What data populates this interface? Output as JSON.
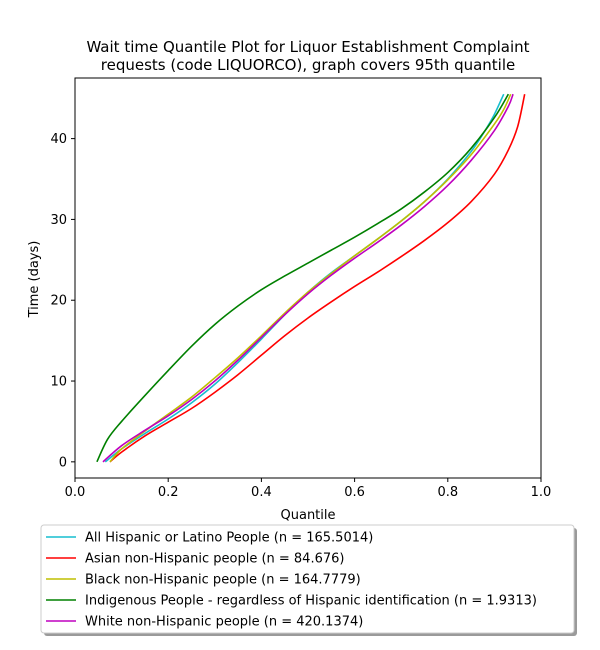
{
  "chart_data": {
    "type": "line",
    "title": [
      "Wait time Quantile Plot for Liquor Establishment Complaint",
      "requests (code LIQUORCO), graph covers 95th quantile"
    ],
    "xlabel": "Quantile",
    "ylabel": "Time (days)",
    "xlim": [
      0.0,
      1.0
    ],
    "ylim": [
      -2,
      47.5
    ],
    "xticks": [
      "0.0",
      "0.2",
      "0.4",
      "0.6",
      "0.8",
      "1.0"
    ],
    "yticks": [
      "0",
      "10",
      "20",
      "30",
      "40"
    ],
    "grid": false,
    "legend_position": "below plot",
    "series": [
      {
        "name": "All Hispanic or Latino People (n = 165.5014)",
        "color": "#17becf",
        "x": [
          0.065,
          0.1,
          0.15,
          0.2,
          0.25,
          0.3,
          0.35,
          0.4,
          0.45,
          0.5,
          0.55,
          0.6,
          0.65,
          0.7,
          0.75,
          0.8,
          0.85,
          0.88,
          0.9,
          0.92
        ],
        "y": [
          0,
          1.6,
          3.5,
          5.3,
          7.3,
          9.6,
          12.3,
          15.2,
          18.2,
          21.0,
          23.4,
          25.5,
          27.6,
          29.8,
          32.2,
          35.0,
          38.4,
          41.0,
          43.0,
          45.5
        ]
      },
      {
        "name": "Asian non-Hispanic people (n = 84.676)",
        "color": "#ff0000",
        "x": [
          0.075,
          0.1,
          0.15,
          0.2,
          0.25,
          0.3,
          0.35,
          0.4,
          0.45,
          0.5,
          0.55,
          0.6,
          0.65,
          0.7,
          0.75,
          0.8,
          0.85,
          0.9,
          0.93,
          0.95,
          0.965
        ],
        "y": [
          0,
          1.2,
          3.2,
          4.9,
          6.6,
          8.6,
          10.8,
          13.2,
          15.6,
          17.8,
          19.8,
          21.7,
          23.5,
          25.4,
          27.4,
          29.6,
          32.2,
          35.6,
          38.6,
          41.5,
          45.5
        ]
      },
      {
        "name": "Black non-Hispanic people (n = 164.7779)",
        "color": "#bfbf00",
        "x": [
          0.075,
          0.1,
          0.15,
          0.2,
          0.25,
          0.3,
          0.35,
          0.4,
          0.45,
          0.5,
          0.55,
          0.6,
          0.65,
          0.7,
          0.75,
          0.8,
          0.85,
          0.9,
          0.92,
          0.935
        ],
        "y": [
          0,
          1.6,
          3.8,
          5.9,
          8.0,
          10.4,
          12.9,
          15.6,
          18.4,
          21.0,
          23.3,
          25.5,
          27.6,
          29.8,
          32.2,
          34.9,
          38.0,
          41.8,
          43.6,
          45.5
        ]
      },
      {
        "name": "Indigenous People - regardless of Hispanic identification (n = 1.9313)",
        "color": "#008000",
        "x": [
          0.047,
          0.07,
          0.1,
          0.15,
          0.2,
          0.25,
          0.3,
          0.35,
          0.4,
          0.45,
          0.5,
          0.55,
          0.6,
          0.65,
          0.7,
          0.75,
          0.8,
          0.85,
          0.9,
          0.93
        ],
        "y": [
          0,
          2.8,
          5.0,
          8.2,
          11.3,
          14.3,
          17.0,
          19.3,
          21.3,
          23.0,
          24.6,
          26.2,
          27.8,
          29.5,
          31.3,
          33.4,
          35.8,
          38.8,
          42.6,
          45.5
        ]
      },
      {
        "name": "White non-Hispanic people (n = 420.1374)",
        "color": "#bf00bf",
        "x": [
          0.06,
          0.1,
          0.15,
          0.2,
          0.25,
          0.3,
          0.35,
          0.4,
          0.45,
          0.5,
          0.55,
          0.6,
          0.65,
          0.7,
          0.75,
          0.8,
          0.85,
          0.9,
          0.93,
          0.94
        ],
        "y": [
          0,
          2.0,
          3.9,
          5.7,
          7.7,
          10.0,
          12.6,
          15.4,
          18.2,
          20.8,
          23.1,
          25.2,
          27.2,
          29.3,
          31.6,
          34.2,
          37.3,
          41.0,
          44.0,
          45.5
        ]
      }
    ]
  }
}
